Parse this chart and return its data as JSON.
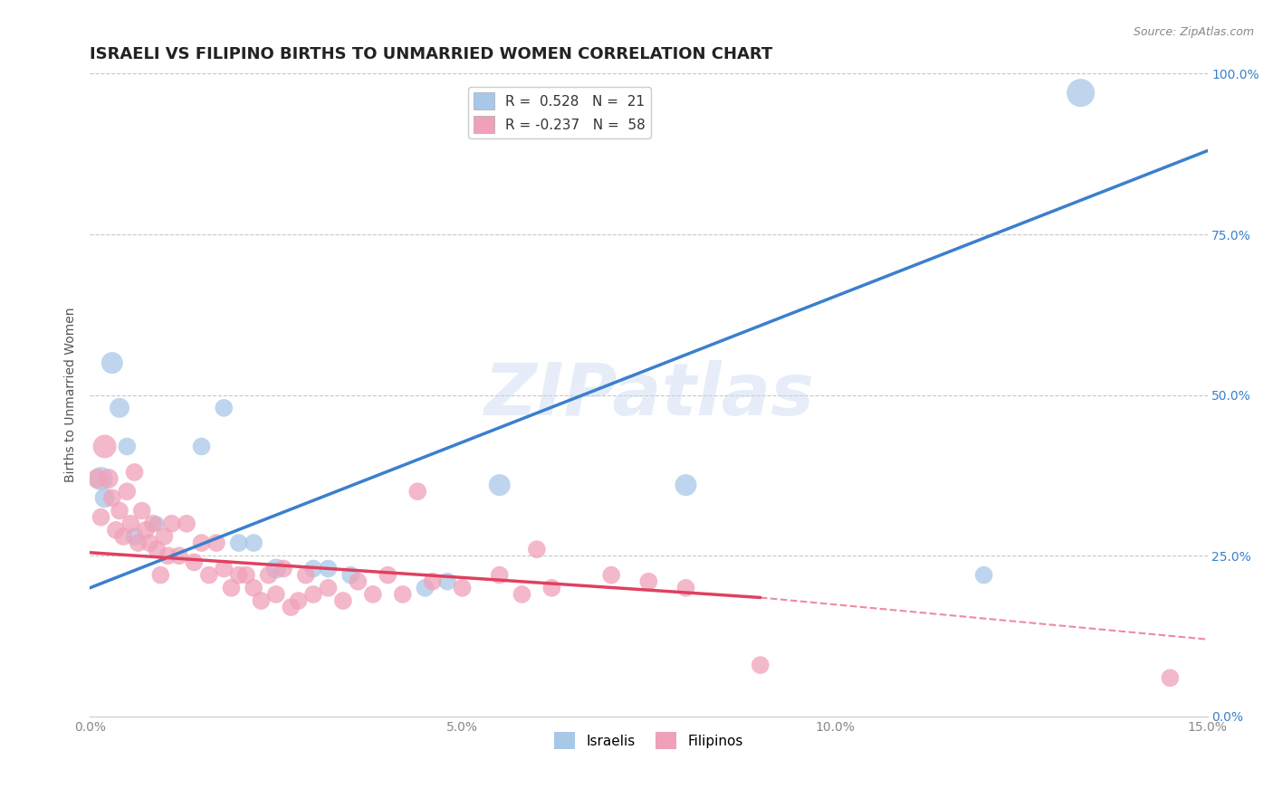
{
  "title": "ISRAELI VS FILIPINO BIRTHS TO UNMARRIED WOMEN CORRELATION CHART",
  "source": "Source: ZipAtlas.com",
  "ylabel_label": "Births to Unmarried Women",
  "xlim": [
    0.0,
    15.0
  ],
  "ylim": [
    0.0,
    100.0
  ],
  "xticks": [
    0.0,
    5.0,
    10.0,
    15.0
  ],
  "yticks": [
    0.0,
    25.0,
    50.0,
    75.0,
    100.0
  ],
  "xtick_labels": [
    "0.0%",
    "5.0%",
    "10.0%",
    "15.0%"
  ],
  "ytick_labels": [
    "0.0%",
    "25.0%",
    "50.0%",
    "75.0%",
    "100.0%"
  ],
  "grid_color": "#c8c8c8",
  "background_color": "#ffffff",
  "israeli_color": "#a8c8e8",
  "filipino_color": "#f0a0b8",
  "israeli_line_color": "#3a80cc",
  "filipino_line_color": "#e04060",
  "israeli_R": 0.528,
  "israeli_N": 21,
  "filipino_R": -0.237,
  "filipino_N": 58,
  "title_fontsize": 13,
  "axis_label_fontsize": 10,
  "tick_fontsize": 10,
  "legend_fontsize": 11,
  "watermark": "ZIPatlas",
  "watermark_color": "#c8d8f0",
  "ytick_color": "#3a80cc",
  "xtick_color": "#888888",
  "israeli_line_x0": 0.0,
  "israeli_line_y0": 20.0,
  "israeli_line_x1": 15.0,
  "israeli_line_y1": 88.0,
  "filipino_line_x0": 0.0,
  "filipino_line_y0": 25.5,
  "filipino_line_solid_x1": 9.0,
  "filipino_line_solid_y1": 18.5,
  "filipino_line_dash_x1": 15.0,
  "filipino_line_dash_y1": 12.0,
  "israeli_points": [
    [
      0.15,
      37.0
    ],
    [
      0.2,
      34.0
    ],
    [
      0.3,
      55.0
    ],
    [
      0.4,
      48.0
    ],
    [
      0.5,
      42.0
    ],
    [
      0.6,
      28.0
    ],
    [
      0.9,
      30.0
    ],
    [
      1.5,
      42.0
    ],
    [
      1.8,
      48.0
    ],
    [
      2.0,
      27.0
    ],
    [
      2.2,
      27.0
    ],
    [
      2.5,
      23.0
    ],
    [
      3.0,
      23.0
    ],
    [
      3.2,
      23.0
    ],
    [
      3.5,
      22.0
    ],
    [
      4.5,
      20.0
    ],
    [
      4.8,
      21.0
    ],
    [
      5.5,
      36.0
    ],
    [
      8.0,
      36.0
    ],
    [
      12.0,
      22.0
    ],
    [
      13.3,
      97.0
    ]
  ],
  "filipino_points": [
    [
      0.1,
      37.0
    ],
    [
      0.15,
      31.0
    ],
    [
      0.2,
      42.0
    ],
    [
      0.25,
      37.0
    ],
    [
      0.3,
      34.0
    ],
    [
      0.35,
      29.0
    ],
    [
      0.4,
      32.0
    ],
    [
      0.45,
      28.0
    ],
    [
      0.5,
      35.0
    ],
    [
      0.55,
      30.0
    ],
    [
      0.6,
      38.0
    ],
    [
      0.65,
      27.0
    ],
    [
      0.7,
      32.0
    ],
    [
      0.75,
      29.0
    ],
    [
      0.8,
      27.0
    ],
    [
      0.85,
      30.0
    ],
    [
      0.9,
      26.0
    ],
    [
      0.95,
      22.0
    ],
    [
      1.0,
      28.0
    ],
    [
      1.05,
      25.0
    ],
    [
      1.1,
      30.0
    ],
    [
      1.2,
      25.0
    ],
    [
      1.3,
      30.0
    ],
    [
      1.4,
      24.0
    ],
    [
      1.5,
      27.0
    ],
    [
      1.6,
      22.0
    ],
    [
      1.7,
      27.0
    ],
    [
      1.8,
      23.0
    ],
    [
      1.9,
      20.0
    ],
    [
      2.0,
      22.0
    ],
    [
      2.1,
      22.0
    ],
    [
      2.2,
      20.0
    ],
    [
      2.3,
      18.0
    ],
    [
      2.4,
      22.0
    ],
    [
      2.5,
      19.0
    ],
    [
      2.6,
      23.0
    ],
    [
      2.7,
      17.0
    ],
    [
      2.8,
      18.0
    ],
    [
      2.9,
      22.0
    ],
    [
      3.0,
      19.0
    ],
    [
      3.2,
      20.0
    ],
    [
      3.4,
      18.0
    ],
    [
      3.6,
      21.0
    ],
    [
      3.8,
      19.0
    ],
    [
      4.0,
      22.0
    ],
    [
      4.2,
      19.0
    ],
    [
      4.4,
      35.0
    ],
    [
      4.6,
      21.0
    ],
    [
      5.0,
      20.0
    ],
    [
      5.5,
      22.0
    ],
    [
      5.8,
      19.0
    ],
    [
      6.0,
      26.0
    ],
    [
      6.2,
      20.0
    ],
    [
      7.0,
      22.0
    ],
    [
      7.5,
      21.0
    ],
    [
      8.0,
      20.0
    ],
    [
      9.0,
      8.0
    ],
    [
      14.5,
      6.0
    ]
  ],
  "israeli_sizes": [
    350,
    250,
    300,
    250,
    200,
    200,
    150,
    200,
    200,
    200,
    200,
    250,
    200,
    200,
    200,
    200,
    200,
    300,
    300,
    200,
    500
  ],
  "filipino_sizes": [
    250,
    200,
    350,
    250,
    200,
    200,
    200,
    200,
    200,
    200,
    200,
    200,
    200,
    200,
    200,
    200,
    200,
    200,
    200,
    200,
    200,
    200,
    200,
    200,
    200,
    200,
    200,
    200,
    200,
    200,
    200,
    200,
    200,
    200,
    200,
    200,
    200,
    200,
    200,
    200,
    200,
    200,
    200,
    200,
    200,
    200,
    200,
    200,
    200,
    200,
    200,
    200,
    200,
    200,
    200,
    200,
    200,
    200
  ]
}
